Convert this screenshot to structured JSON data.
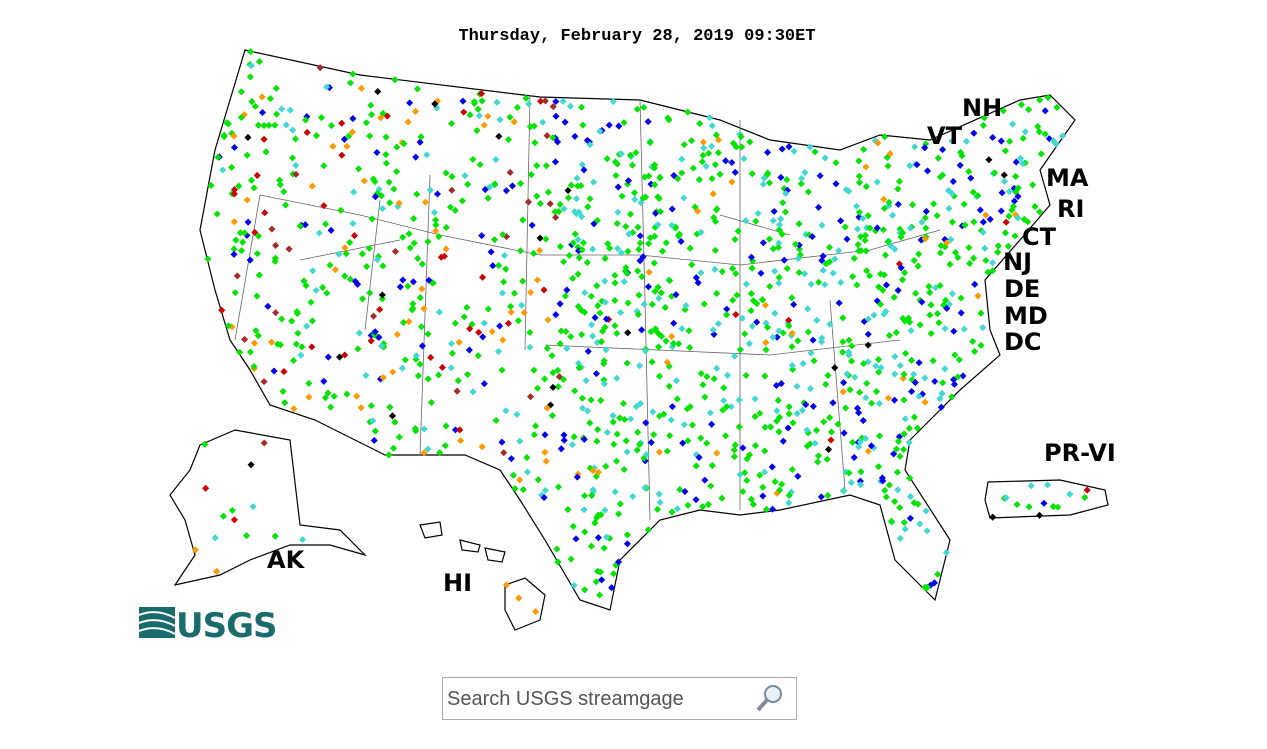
{
  "header": {
    "title": "Thursday, February 28, 2019 09:30ET"
  },
  "map": {
    "labels": [
      "NH",
      "VT",
      "MA",
      "RI",
      "CT",
      "NJ",
      "DE",
      "MD",
      "DC",
      "PR-VI",
      "AK",
      "HI"
    ]
  },
  "logo": {
    "text": "USGS"
  },
  "search": {
    "placeholder": "Search USGS streamgage"
  }
}
